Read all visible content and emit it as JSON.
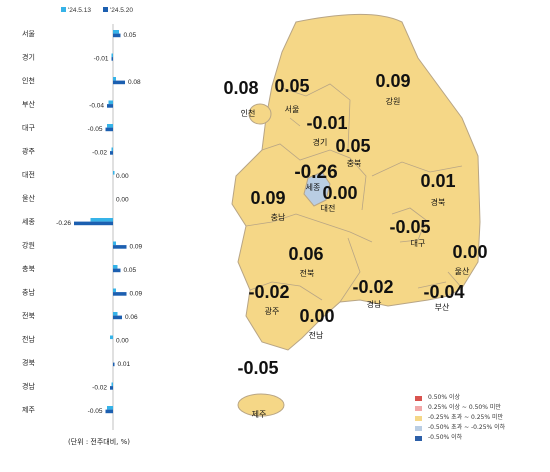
{
  "legend": {
    "series": [
      {
        "name": "'24.5.13",
        "color": "#36b3e8"
      },
      {
        "name": "'24.5.20",
        "color": "#1c5fb0"
      }
    ]
  },
  "unit_note": "(단위 : 전주대비, %)",
  "chart_data": {
    "type": "bar",
    "orientation": "horizontal",
    "categories": [
      "서울",
      "경기",
      "인천",
      "부산",
      "대구",
      "광주",
      "대전",
      "울산",
      "세종",
      "강원",
      "충북",
      "충남",
      "전북",
      "전남",
      "경북",
      "경남",
      "제주"
    ],
    "series": [
      {
        "name": "'24.5.13",
        "values": [
          0.04,
          -0.01,
          0.02,
          -0.03,
          -0.04,
          -0.01,
          0.01,
          0.0,
          -0.15,
          0.02,
          0.03,
          0.02,
          0.03,
          -0.02,
          0.0,
          -0.01,
          -0.04
        ]
      },
      {
        "name": "'24.5.20",
        "values": [
          0.05,
          -0.01,
          0.08,
          -0.04,
          -0.05,
          -0.02,
          0.0,
          0.0,
          -0.26,
          0.09,
          0.05,
          0.09,
          0.06,
          0.0,
          0.01,
          -0.02,
          -0.05
        ]
      }
    ],
    "data_labels": [
      "0.05",
      "-0.01",
      "0.08",
      "-0.04",
      "-0.05",
      "-0.02",
      "0.00",
      "0.00",
      "-0.26",
      "0.09",
      "0.05",
      "0.09",
      "0.06",
      "0.00",
      "0.01",
      "-0.02",
      "-0.05"
    ],
    "xlim": [
      -0.3,
      0.1
    ]
  },
  "map": {
    "regions": [
      {
        "name": "인천",
        "value": "0.08"
      },
      {
        "name": "서울",
        "value": "0.05"
      },
      {
        "name": "강원",
        "value": "0.09"
      },
      {
        "name": "경기",
        "value": "-0.01"
      },
      {
        "name": "세종",
        "value": "-0.26"
      },
      {
        "name": "충북",
        "value": "0.05"
      },
      {
        "name": "충남",
        "value": "0.09"
      },
      {
        "name": "대전",
        "value": "0.00"
      },
      {
        "name": "경북",
        "value": "0.01"
      },
      {
        "name": "대구",
        "value": "-0.05"
      },
      {
        "name": "울산",
        "value": "0.00"
      },
      {
        "name": "전북",
        "value": "0.06"
      },
      {
        "name": "광주",
        "value": "-0.02"
      },
      {
        "name": "경남",
        "value": "-0.02"
      },
      {
        "name": "부산",
        "value": "-0.04"
      },
      {
        "name": "전남",
        "value": "0.00"
      },
      {
        "name": "제주",
        "value": "-0.05"
      }
    ],
    "fill_color": "#f5d787",
    "border_color": "#b8a585",
    "sejong_color": "#b9cde3",
    "legend": [
      {
        "label": "0.50% 이상",
        "color": "#d9534f"
      },
      {
        "label": "0.25% 이상 ~ 0.50% 미만",
        "color": "#f2a7a7"
      },
      {
        "label": "-0.25% 초과 ~ 0.25% 미만",
        "color": "#f5d787"
      },
      {
        "label": "-0.50% 초과 ~ -0.25% 이하",
        "color": "#b9cde3"
      },
      {
        "label": "-0.50% 이하",
        "color": "#2c5fa8"
      }
    ]
  }
}
